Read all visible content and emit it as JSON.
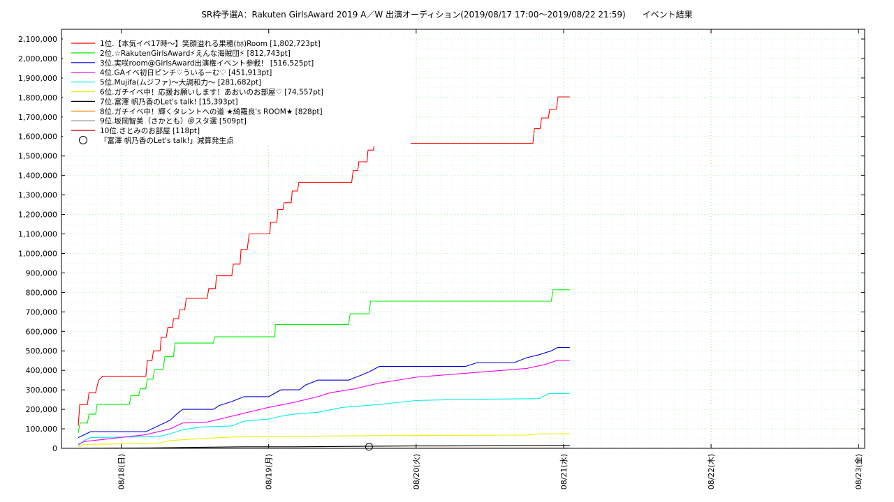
{
  "chart_data": {
    "type": "line",
    "title": "SR枠予選A：Rakuten GirlsAward 2019 A／W 出演オーディション(2019/08/17 17:00～2019/08/22 21:59)　　イベント結果",
    "xlabel": "",
    "ylabel": "",
    "ylim": [
      0,
      2150000
    ],
    "xlim": [
      "2019-08-17 17:00",
      "2019-08-23 01:00"
    ],
    "grid": true,
    "legend_position": "top-left",
    "x_ticks": [
      {
        "t": "2019-08-18 00:00",
        "label": "08/18(日)"
      },
      {
        "t": "2019-08-19 00:00",
        "label": "08/19(月)"
      },
      {
        "t": "2019-08-20 00:00",
        "label": "08/20(火)"
      },
      {
        "t": "2019-08-21 00:00",
        "label": "08/21(水)"
      },
      {
        "t": "2019-08-22 00:00",
        "label": "08/22(木)"
      },
      {
        "t": "2019-08-23 00:00",
        "label": "08/23(金)"
      }
    ],
    "y_ticks": [
      {
        "v": 0,
        "label": "0"
      },
      {
        "v": 100000,
        "label": "100,000"
      },
      {
        "v": 200000,
        "label": "200,000"
      },
      {
        "v": 300000,
        "label": "300,000"
      },
      {
        "v": 400000,
        "label": "400,000"
      },
      {
        "v": 500000,
        "label": "500,000"
      },
      {
        "v": 600000,
        "label": "600,000"
      },
      {
        "v": 700000,
        "label": "700,000"
      },
      {
        "v": 800000,
        "label": "800,000"
      },
      {
        "v": 900000,
        "label": "900,000"
      },
      {
        "v": 1000000,
        "label": "1,000,000"
      },
      {
        "v": 1100000,
        "label": "1,100,000"
      },
      {
        "v": 1200000,
        "label": "1,200,000"
      },
      {
        "v": 1300000,
        "label": "1,300,000"
      },
      {
        "v": 1400000,
        "label": "1,400,000"
      },
      {
        "v": 1500000,
        "label": "1,500,000"
      },
      {
        "v": 1600000,
        "label": "1,600,000"
      },
      {
        "v": 1700000,
        "label": "1,700,000"
      },
      {
        "v": 1800000,
        "label": "1,800,000"
      },
      {
        "v": 1900000,
        "label": "1,900,000"
      },
      {
        "v": 2000000,
        "label": "2,000,000"
      },
      {
        "v": 2100000,
        "label": "2,100,000"
      }
    ],
    "series": [
      {
        "name": "1位.【本気イベ17時～】笑顔溢れる果穂(ｶﾎ)Room [1,802,723pt]",
        "color": "#ff0000",
        "points": [
          [
            "2019-08-17 17:00",
            115000
          ],
          [
            "2019-08-17 17:15",
            225000
          ],
          [
            "2019-08-17 18:30",
            225000
          ],
          [
            "2019-08-17 18:45",
            285000
          ],
          [
            "2019-08-17 19:50",
            285000
          ],
          [
            "2019-08-17 20:20",
            350000
          ],
          [
            "2019-08-17 21:00",
            370000
          ],
          [
            "2019-08-18 04:00",
            370000
          ],
          [
            "2019-08-18 04:15",
            450000
          ],
          [
            "2019-08-18 05:00",
            450000
          ],
          [
            "2019-08-18 05:15",
            500000
          ],
          [
            "2019-08-18 06:20",
            500000
          ],
          [
            "2019-08-18 06:30",
            570000
          ],
          [
            "2019-08-18 07:20",
            570000
          ],
          [
            "2019-08-18 07:35",
            620000
          ],
          [
            "2019-08-18 08:20",
            620000
          ],
          [
            "2019-08-18 08:30",
            665000
          ],
          [
            "2019-08-18 09:20",
            665000
          ],
          [
            "2019-08-18 09:30",
            710000
          ],
          [
            "2019-08-18 10:20",
            710000
          ],
          [
            "2019-08-18 10:35",
            770000
          ],
          [
            "2019-08-18 14:00",
            770000
          ],
          [
            "2019-08-18 14:15",
            820000
          ],
          [
            "2019-08-18 15:20",
            820000
          ],
          [
            "2019-08-18 15:30",
            885000
          ],
          [
            "2019-08-18 18:00",
            885000
          ],
          [
            "2019-08-18 18:15",
            945000
          ],
          [
            "2019-08-18 19:20",
            945000
          ],
          [
            "2019-08-18 19:30",
            1020000
          ],
          [
            "2019-08-18 20:30",
            1020000
          ],
          [
            "2019-08-18 20:50",
            1100000
          ],
          [
            "2019-08-19 00:10",
            1100000
          ],
          [
            "2019-08-19 00:20",
            1160000
          ],
          [
            "2019-08-19 01:20",
            1160000
          ],
          [
            "2019-08-19 01:30",
            1225000
          ],
          [
            "2019-08-19 02:20",
            1225000
          ],
          [
            "2019-08-19 02:30",
            1260000
          ],
          [
            "2019-08-19 03:40",
            1260000
          ],
          [
            "2019-08-19 03:50",
            1320000
          ],
          [
            "2019-08-19 04:40",
            1320000
          ],
          [
            "2019-08-19 04:55",
            1365000
          ],
          [
            "2019-08-19 13:30",
            1365000
          ],
          [
            "2019-08-19 13:45",
            1425000
          ],
          [
            "2019-08-19 14:30",
            1425000
          ],
          [
            "2019-08-19 14:40",
            1470000
          ],
          [
            "2019-08-19 16:00",
            1470000
          ],
          [
            "2019-08-19 16:10",
            1530000
          ],
          [
            "2019-08-19 17:00",
            1530000
          ],
          [
            "2019-08-19 17:15",
            1565000
          ],
          [
            "2019-08-20 19:00",
            1565000
          ],
          [
            "2019-08-20 19:15",
            1640000
          ],
          [
            "2019-08-20 20:10",
            1640000
          ],
          [
            "2019-08-20 20:25",
            1695000
          ],
          [
            "2019-08-20 21:30",
            1695000
          ],
          [
            "2019-08-20 21:45",
            1740000
          ],
          [
            "2019-08-20 22:50",
            1740000
          ],
          [
            "2019-08-20 23:05",
            1803000
          ],
          [
            "2019-08-21 01:00",
            1803000
          ]
        ]
      },
      {
        "name": "2位.☆RakutenGirlsAward⚡えんな海賊団⚡ [812,743pt]",
        "color": "#00ee00",
        "points": [
          [
            "2019-08-17 17:00",
            80000
          ],
          [
            "2019-08-17 17:20",
            130000
          ],
          [
            "2019-08-17 18:30",
            130000
          ],
          [
            "2019-08-17 18:45",
            175000
          ],
          [
            "2019-08-17 19:50",
            175000
          ],
          [
            "2019-08-17 20:05",
            225000
          ],
          [
            "2019-08-18 01:20",
            225000
          ],
          [
            "2019-08-18 01:35",
            270000
          ],
          [
            "2019-08-18 02:50",
            270000
          ],
          [
            "2019-08-18 03:05",
            305000
          ],
          [
            "2019-08-18 04:00",
            305000
          ],
          [
            "2019-08-18 04:15",
            355000
          ],
          [
            "2019-08-18 05:10",
            355000
          ],
          [
            "2019-08-18 05:25",
            405000
          ],
          [
            "2019-08-18 06:50",
            405000
          ],
          [
            "2019-08-18 07:05",
            470000
          ],
          [
            "2019-08-18 08:30",
            470000
          ],
          [
            "2019-08-18 08:45",
            540000
          ],
          [
            "2019-08-18 15:00",
            540000
          ],
          [
            "2019-08-18 15:15",
            572000
          ],
          [
            "2019-08-19 01:00",
            572000
          ],
          [
            "2019-08-19 01:05",
            635000
          ],
          [
            "2019-08-19 13:00",
            635000
          ],
          [
            "2019-08-19 13:15",
            690000
          ],
          [
            "2019-08-19 16:20",
            690000
          ],
          [
            "2019-08-19 16:35",
            755000
          ],
          [
            "2019-08-20 22:00",
            755000
          ],
          [
            "2019-08-20 22:15",
            813000
          ],
          [
            "2019-08-21 01:00",
            813000
          ]
        ]
      },
      {
        "name": "3位.実咲room@GirlsAward出演権イベント参戦！ [516,525pt]",
        "color": "#0000dd",
        "points": [
          [
            "2019-08-17 17:00",
            55000
          ],
          [
            "2019-08-17 19:00",
            85000
          ],
          [
            "2019-08-18 04:00",
            85000
          ],
          [
            "2019-08-18 06:00",
            115000
          ],
          [
            "2019-08-18 08:00",
            145000
          ],
          [
            "2019-08-18 09:00",
            175000
          ],
          [
            "2019-08-18 10:00",
            200000
          ],
          [
            "2019-08-18 15:00",
            200000
          ],
          [
            "2019-08-18 16:00",
            220000
          ],
          [
            "2019-08-18 18:00",
            240000
          ],
          [
            "2019-08-18 20:00",
            265000
          ],
          [
            "2019-08-19 00:00",
            265000
          ],
          [
            "2019-08-19 02:00",
            300000
          ],
          [
            "2019-08-19 05:00",
            300000
          ],
          [
            "2019-08-19 06:00",
            325000
          ],
          [
            "2019-08-19 08:00",
            350000
          ],
          [
            "2019-08-19 13:00",
            350000
          ],
          [
            "2019-08-19 15:00",
            375000
          ],
          [
            "2019-08-19 16:30",
            395000
          ],
          [
            "2019-08-19 18:00",
            420000
          ],
          [
            "2019-08-20 08:00",
            420000
          ],
          [
            "2019-08-20 10:00",
            440000
          ],
          [
            "2019-08-20 16:00",
            440000
          ],
          [
            "2019-08-20 18:00",
            465000
          ],
          [
            "2019-08-20 20:00",
            480000
          ],
          [
            "2019-08-20 22:00",
            500000
          ],
          [
            "2019-08-20 23:00",
            517000
          ],
          [
            "2019-08-21 01:00",
            517000
          ]
        ]
      },
      {
        "name": "4位.GAイベ初日ピンチ♡ういるーむ♡ [451,913pt]",
        "color": "#ee00ee",
        "points": [
          [
            "2019-08-17 17:00",
            20000
          ],
          [
            "2019-08-17 18:00",
            35000
          ],
          [
            "2019-08-18 04:00",
            70000
          ],
          [
            "2019-08-18 08:00",
            100000
          ],
          [
            "2019-08-18 10:00",
            130000
          ],
          [
            "2019-08-18 14:00",
            135000
          ],
          [
            "2019-08-18 16:00",
            150000
          ],
          [
            "2019-08-18 20:00",
            180000
          ],
          [
            "2019-08-19 00:00",
            210000
          ],
          [
            "2019-08-19 04:00",
            235000
          ],
          [
            "2019-08-19 08:00",
            265000
          ],
          [
            "2019-08-19 10:00",
            285000
          ],
          [
            "2019-08-19 14:00",
            305000
          ],
          [
            "2019-08-19 18:00",
            335000
          ],
          [
            "2019-08-20 00:00",
            365000
          ],
          [
            "2019-08-20 06:00",
            380000
          ],
          [
            "2019-08-20 12:00",
            395000
          ],
          [
            "2019-08-20 18:00",
            410000
          ],
          [
            "2019-08-20 21:00",
            430000
          ],
          [
            "2019-08-20 23:00",
            452000
          ],
          [
            "2019-08-21 01:00",
            452000
          ]
        ]
      },
      {
        "name": "5位.Mujifa(ムジファ)～大調和力～ [281,682pt]",
        "color": "#00eeee",
        "points": [
          [
            "2019-08-17 17:00",
            15000
          ],
          [
            "2019-08-17 18:00",
            40000
          ],
          [
            "2019-08-17 19:00",
            55000
          ],
          [
            "2019-08-18 06:00",
            60000
          ],
          [
            "2019-08-18 08:00",
            75000
          ],
          [
            "2019-08-18 10:00",
            95000
          ],
          [
            "2019-08-18 13:00",
            110000
          ],
          [
            "2019-08-18 18:00",
            115000
          ],
          [
            "2019-08-18 20:00",
            140000
          ],
          [
            "2019-08-19 00:00",
            150000
          ],
          [
            "2019-08-19 02:00",
            165000
          ],
          [
            "2019-08-19 04:00",
            175000
          ],
          [
            "2019-08-19 08:00",
            185000
          ],
          [
            "2019-08-19 12:00",
            210000
          ],
          [
            "2019-08-19 18:00",
            225000
          ],
          [
            "2019-08-20 00:00",
            245000
          ],
          [
            "2019-08-20 06:00",
            250000
          ],
          [
            "2019-08-20 20:00",
            255000
          ],
          [
            "2019-08-20 21:30",
            280000
          ],
          [
            "2019-08-21 01:00",
            282000
          ]
        ]
      },
      {
        "name": "6位.ガチイベ中！応援お願いします！あおいのお部屋♡ [74,557pt]",
        "color": "#eeee00",
        "points": [
          [
            "2019-08-17 17:00",
            8000
          ],
          [
            "2019-08-17 18:00",
            20000
          ],
          [
            "2019-08-18 06:00",
            25000
          ],
          [
            "2019-08-18 08:00",
            40000
          ],
          [
            "2019-08-18 12:00",
            48000
          ],
          [
            "2019-08-18 18:00",
            58000
          ],
          [
            "2019-08-19 06:00",
            62000
          ],
          [
            "2019-08-19 18:00",
            65000
          ],
          [
            "2019-08-20 18:00",
            68000
          ],
          [
            "2019-08-20 20:00",
            74000
          ],
          [
            "2019-08-21 01:00",
            74557
          ]
        ]
      },
      {
        "name": "7位.富澤 帆乃香のLet's talk! [15,393pt]",
        "color": "#000000",
        "points": [
          [
            "2019-08-17 17:00",
            0
          ],
          [
            "2019-08-18 05:00",
            2000
          ],
          [
            "2019-08-18 12:00",
            5000
          ],
          [
            "2019-08-18 20:00",
            8000
          ],
          [
            "2019-08-19 04:00",
            8000
          ],
          [
            "2019-08-19 12:00",
            9500
          ],
          [
            "2019-08-20 00:00",
            12000
          ],
          [
            "2019-08-20 12:00",
            13000
          ],
          [
            "2019-08-21 01:00",
            15393
          ]
        ]
      },
      {
        "name": "8位.ガチイベ中！輝くタレントへの道 ★綺羅良's ROOM★ [828pt]",
        "color": "#ff8000",
        "points": [
          [
            "2019-08-17 17:00",
            0
          ],
          [
            "2019-08-21 01:00",
            828
          ]
        ]
      },
      {
        "name": "9位.坂岡智美（さかとも）＠スタ選 [509pt]",
        "color": "#808080",
        "points": [
          [
            "2019-08-17 17:00",
            0
          ],
          [
            "2019-08-21 01:00",
            509
          ]
        ]
      },
      {
        "name": "10位.さとみのお部屋 [118pt]",
        "color": "#cc0000",
        "points": [
          [
            "2019-08-17 17:00",
            0
          ],
          [
            "2019-08-21 01:00",
            118
          ]
        ]
      }
    ],
    "annotations": [
      {
        "label": "「富澤 帆乃香のLet's talk!」減算発生点",
        "marker": "circle",
        "at": [
          "2019-08-19 16:20",
          8000
        ]
      }
    ]
  }
}
